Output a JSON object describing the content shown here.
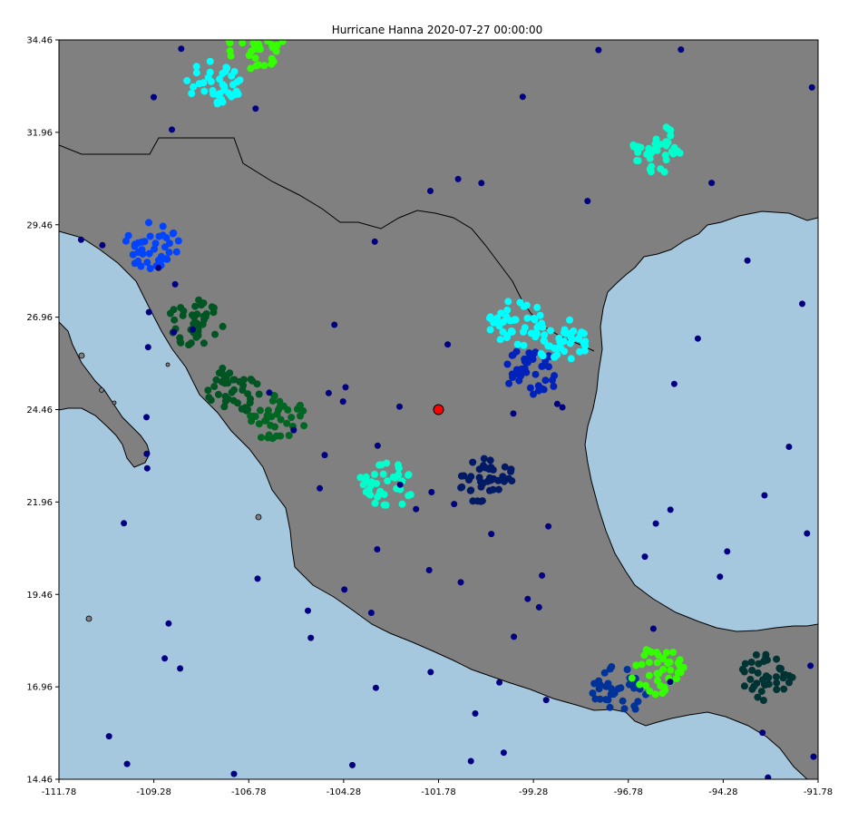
{
  "title": "Hurricane Hanna 2020-07-27 00:00:00",
  "colors": {
    "ocean": "#a6c8df",
    "land": "#808080",
    "coast": "#000000",
    "marker": "#ff0000"
  },
  "chart_data": {
    "type": "scatter",
    "title": "Hurricane Hanna 2020-07-27 00:00:00",
    "xlim": [
      -111.78,
      -91.78
    ],
    "ylim": [
      14.46,
      34.46
    ],
    "x_ticks": [
      "-111.78",
      "-109.28",
      "-106.78",
      "-104.28",
      "-101.78",
      "-99.28",
      "-96.78",
      "-94.28",
      "-91.78"
    ],
    "y_ticks": [
      "14.46",
      "16.96",
      "19.46",
      "21.96",
      "24.46",
      "26.96",
      "29.46",
      "31.96",
      "34.46"
    ],
    "grid": false,
    "hurricane_marker": {
      "lon": -101.78,
      "lat": 24.46,
      "color": "#ff0000"
    },
    "clusters": [
      {
        "lon": -103.2,
        "lat": 22.4,
        "color": "#00ffcc"
      },
      {
        "lon": -100.5,
        "lat": 22.5,
        "color": "#001a66"
      },
      {
        "lon": -99.7,
        "lat": 26.8,
        "color": "#00ffff"
      },
      {
        "lon": -99.3,
        "lat": 25.5,
        "color": "#0022bb"
      },
      {
        "lon": -97.0,
        "lat": 16.9,
        "color": "#003399"
      },
      {
        "lon": -93.2,
        "lat": 17.2,
        "color": "#003333"
      },
      {
        "lon": -107.2,
        "lat": 25.0,
        "color": "#005522"
      },
      {
        "lon": -108.2,
        "lat": 26.8,
        "color": "#005522"
      },
      {
        "lon": -109.3,
        "lat": 28.9,
        "color": "#0044ff"
      },
      {
        "lon": -106.0,
        "lat": 24.2,
        "color": "#006622"
      },
      {
        "lon": -106.6,
        "lat": 34.3,
        "color": "#33ff00"
      },
      {
        "lon": -107.7,
        "lat": 33.3,
        "color": "#00ffff"
      },
      {
        "lon": -96.0,
        "lat": 31.5,
        "color": "#00ffcc"
      },
      {
        "lon": -96.0,
        "lat": 17.4,
        "color": "#33ff00"
      },
      {
        "lon": -98.6,
        "lat": 26.3,
        "color": "#00ffff"
      }
    ]
  }
}
